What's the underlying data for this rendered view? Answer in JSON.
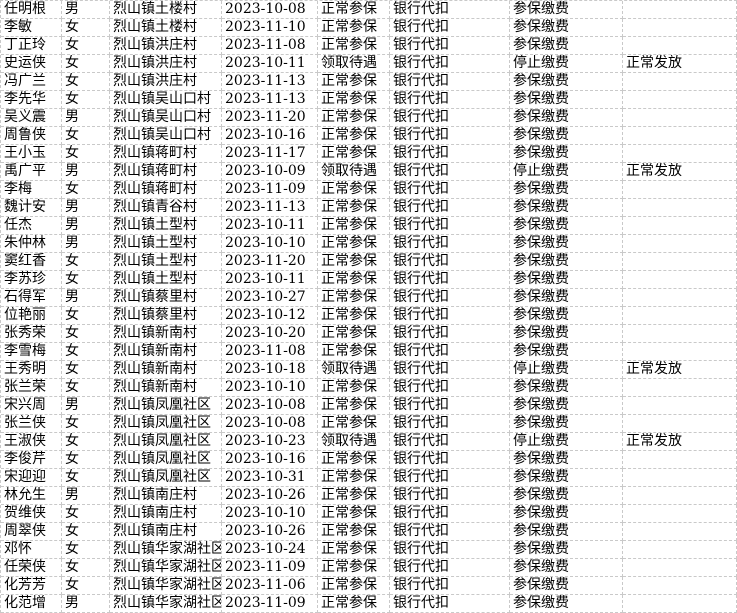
{
  "app": {
    "kind": "spreadsheet-cell-grid",
    "background_color": "#ffffff",
    "gridline_color": "#c9c9c9",
    "text_color": "#000000"
  },
  "table": {
    "columns": [
      "name",
      "gender",
      "village",
      "date",
      "insurance_status",
      "payment_method",
      "payment_status",
      "benefit_status"
    ],
    "rows": [
      [
        "任明根",
        "男",
        "烈山镇土楼村",
        "2023-10-08",
        "正常参保",
        "银行代扣",
        "参保缴费",
        ""
      ],
      [
        "李敏",
        "女",
        "烈山镇土楼村",
        "2023-11-10",
        "正常参保",
        "银行代扣",
        "参保缴费",
        ""
      ],
      [
        "丁正玲",
        "女",
        "烈山镇洪庄村",
        "2023-11-08",
        "正常参保",
        "银行代扣",
        "参保缴费",
        ""
      ],
      [
        "史运侠",
        "女",
        "烈山镇洪庄村",
        "2023-10-11",
        "领取待遇",
        "银行代扣",
        "停止缴费",
        "正常发放"
      ],
      [
        "冯广兰",
        "女",
        "烈山镇洪庄村",
        "2023-11-13",
        "正常参保",
        "银行代扣",
        "参保缴费",
        ""
      ],
      [
        "李先华",
        "女",
        "烈山镇吴山口村",
        "2023-11-13",
        "正常参保",
        "银行代扣",
        "参保缴费",
        ""
      ],
      [
        "吴义震",
        "男",
        "烈山镇吴山口村",
        "2023-11-20",
        "正常参保",
        "银行代扣",
        "参保缴费",
        ""
      ],
      [
        "周鲁侠",
        "女",
        "烈山镇吴山口村",
        "2023-10-16",
        "正常参保",
        "银行代扣",
        "参保缴费",
        ""
      ],
      [
        "王小玉",
        "女",
        "烈山镇蒋町村",
        "2023-11-17",
        "正常参保",
        "银行代扣",
        "参保缴费",
        ""
      ],
      [
        "禹广平",
        "男",
        "烈山镇蒋町村",
        "2023-10-09",
        "领取待遇",
        "银行代扣",
        "停止缴费",
        "正常发放"
      ],
      [
        "李梅",
        "女",
        "烈山镇蒋町村",
        "2023-11-09",
        "正常参保",
        "银行代扣",
        "参保缴费",
        ""
      ],
      [
        "魏计安",
        "男",
        "烈山镇青谷村",
        "2023-11-13",
        "正常参保",
        "银行代扣",
        "参保缴费",
        ""
      ],
      [
        "任杰",
        "男",
        "烈山镇土型村",
        "2023-10-11",
        "正常参保",
        "银行代扣",
        "参保缴费",
        ""
      ],
      [
        "朱仲林",
        "男",
        "烈山镇土型村",
        "2023-10-10",
        "正常参保",
        "银行代扣",
        "参保缴费",
        ""
      ],
      [
        "窦红香",
        "女",
        "烈山镇土型村",
        "2023-11-20",
        "正常参保",
        "银行代扣",
        "参保缴费",
        ""
      ],
      [
        "李苏珍",
        "女",
        "烈山镇土型村",
        "2023-10-11",
        "正常参保",
        "银行代扣",
        "参保缴费",
        ""
      ],
      [
        "石得军",
        "男",
        "烈山镇蔡里村",
        "2023-10-27",
        "正常参保",
        "银行代扣",
        "参保缴费",
        ""
      ],
      [
        "位艳丽",
        "女",
        "烈山镇蔡里村",
        "2023-10-12",
        "正常参保",
        "银行代扣",
        "参保缴费",
        ""
      ],
      [
        "张秀荣",
        "女",
        "烈山镇新南村",
        "2023-10-20",
        "正常参保",
        "银行代扣",
        "参保缴费",
        ""
      ],
      [
        "李雪梅",
        "女",
        "烈山镇新南村",
        "2023-11-08",
        "正常参保",
        "银行代扣",
        "参保缴费",
        ""
      ],
      [
        "王秀明",
        "女",
        "烈山镇新南村",
        "2023-10-18",
        "领取待遇",
        "银行代扣",
        "停止缴费",
        "正常发放"
      ],
      [
        "张兰荣",
        "女",
        "烈山镇新南村",
        "2023-10-10",
        "正常参保",
        "银行代扣",
        "参保缴费",
        ""
      ],
      [
        "宋兴周",
        "男",
        "烈山镇凤凰社区",
        "2023-10-08",
        "正常参保",
        "银行代扣",
        "参保缴费",
        ""
      ],
      [
        "张兰侠",
        "女",
        "烈山镇凤凰社区",
        "2023-10-08",
        "正常参保",
        "银行代扣",
        "参保缴费",
        ""
      ],
      [
        "王淑侠",
        "女",
        "烈山镇凤凰社区",
        "2023-10-23",
        "领取待遇",
        "银行代扣",
        "停止缴费",
        "正常发放"
      ],
      [
        "李俊芹",
        "女",
        "烈山镇凤凰社区",
        "2023-10-16",
        "正常参保",
        "银行代扣",
        "参保缴费",
        ""
      ],
      [
        "宋迎迎",
        "女",
        "烈山镇凤凰社区",
        "2023-10-31",
        "正常参保",
        "银行代扣",
        "参保缴费",
        ""
      ],
      [
        "林允生",
        "男",
        "烈山镇南庄村",
        "2023-10-26",
        "正常参保",
        "银行代扣",
        "参保缴费",
        ""
      ],
      [
        "贺维侠",
        "女",
        "烈山镇南庄村",
        "2023-10-10",
        "正常参保",
        "银行代扣",
        "参保缴费",
        ""
      ],
      [
        "周翠侠",
        "女",
        "烈山镇南庄村",
        "2023-10-26",
        "正常参保",
        "银行代扣",
        "参保缴费",
        ""
      ],
      [
        "邓怀",
        "女",
        "烈山镇华家湖社区",
        "2023-10-24",
        "正常参保",
        "银行代扣",
        "参保缴费",
        ""
      ],
      [
        "任荣侠",
        "女",
        "烈山镇华家湖社区",
        "2023-11-09",
        "正常参保",
        "银行代扣",
        "参保缴费",
        ""
      ],
      [
        "化芳芳",
        "女",
        "烈山镇华家湖社区",
        "2023-11-06",
        "正常参保",
        "银行代扣",
        "参保缴费",
        ""
      ],
      [
        "化范增",
        "男",
        "烈山镇华家湖社区",
        "2023-11-09",
        "正常参保",
        "银行代扣",
        "参保缴费",
        ""
      ]
    ]
  }
}
